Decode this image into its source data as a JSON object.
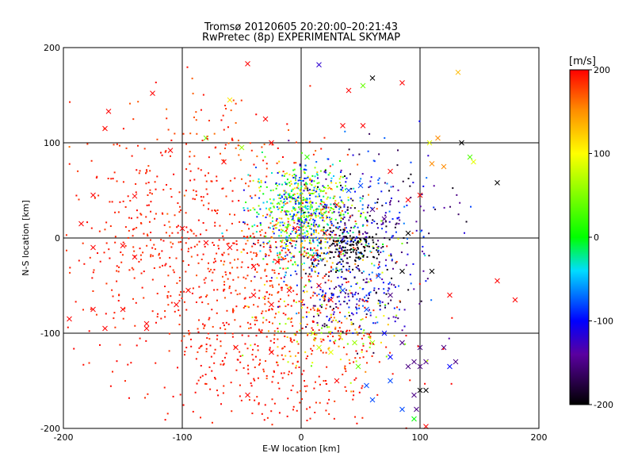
{
  "title_line1": "Tromsø 20120605 20:20:00–20:21:43",
  "title_line2": "RwPretec (8p) EXPERIMENTAL SKYMAP",
  "colorbar": {
    "unit": "[m/s]",
    "min": -200,
    "max": 200,
    "ticks": [
      200,
      100,
      0,
      -100,
      -200
    ]
  },
  "chart_data": {
    "type": "scatter",
    "title": "Tromsø 20120605 20:20:00–20:21:43",
    "subtitle": "RwPretec (8p) EXPERIMENTAL SKYMAP",
    "xlabel": "E-W location [km]",
    "ylabel": "N-S location [km]",
    "xlim": [
      -200,
      200
    ],
    "ylim": [
      -200,
      200
    ],
    "xticks": [
      -200,
      -100,
      0,
      100,
      200
    ],
    "yticks": [
      -200,
      -100,
      0,
      100,
      200
    ],
    "grid": true,
    "color_scale": "velocity [m/s], -200 (black) to 200 (red)",
    "markers": [
      "plus-dot",
      "x"
    ],
    "series": [
      {
        "marker": "x",
        "points": [
          [
            -45,
            183,
            200
          ],
          [
            -125,
            152,
            200
          ],
          [
            -162,
            133,
            200
          ],
          [
            -165,
            115,
            200
          ],
          [
            -60,
            145,
            110
          ],
          [
            -30,
            125,
            200
          ],
          [
            15,
            182,
            -120
          ],
          [
            40,
            155,
            200
          ],
          [
            52,
            160,
            40
          ],
          [
            60,
            168,
            -200
          ],
          [
            85,
            163,
            200
          ],
          [
            132,
            174,
            130
          ],
          [
            35,
            118,
            200
          ],
          [
            52,
            118,
            200
          ],
          [
            -25,
            100,
            200
          ],
          [
            -65,
            80,
            200
          ],
          [
            -110,
            92,
            200
          ],
          [
            -175,
            45,
            200
          ],
          [
            -140,
            44,
            200
          ],
          [
            -50,
            95,
            60
          ],
          [
            -80,
            105,
            40
          ],
          [
            5,
            85,
            20
          ],
          [
            75,
            70,
            200
          ],
          [
            90,
            40,
            200
          ],
          [
            100,
            45,
            200
          ],
          [
            110,
            78,
            150
          ],
          [
            120,
            75,
            150
          ],
          [
            115,
            105,
            150
          ],
          [
            135,
            100,
            -200
          ],
          [
            142,
            85,
            30
          ],
          [
            165,
            58,
            -200
          ],
          [
            108,
            100,
            90
          ],
          [
            145,
            80,
            90
          ],
          [
            -185,
            15,
            200
          ],
          [
            -175,
            -10,
            200
          ],
          [
            -150,
            -8,
            200
          ],
          [
            -140,
            -20,
            200
          ],
          [
            -100,
            10,
            200
          ],
          [
            -80,
            -5,
            200
          ],
          [
            -60,
            -10,
            200
          ],
          [
            -40,
            -30,
            200
          ],
          [
            -20,
            -25,
            200
          ],
          [
            -5,
            10,
            200
          ],
          [
            10,
            -20,
            200
          ],
          [
            20,
            5,
            200
          ],
          [
            30,
            35,
            200
          ],
          [
            40,
            50,
            -80
          ],
          [
            50,
            55,
            -80
          ],
          [
            60,
            30,
            -150
          ],
          [
            70,
            20,
            -150
          ],
          [
            90,
            5,
            -200
          ],
          [
            65,
            -40,
            -80
          ],
          [
            -195,
            -85,
            200
          ],
          [
            -175,
            -75,
            200
          ],
          [
            -165,
            -95,
            200
          ],
          [
            -150,
            -75,
            200
          ],
          [
            -130,
            -90,
            200
          ],
          [
            -105,
            -70,
            200
          ],
          [
            -95,
            -55,
            200
          ],
          [
            -40,
            -60,
            200
          ],
          [
            -25,
            -70,
            200
          ],
          [
            -10,
            -55,
            200
          ],
          [
            15,
            -50,
            200
          ],
          [
            25,
            -65,
            200
          ],
          [
            35,
            -55,
            -80
          ],
          [
            55,
            -75,
            -80
          ],
          [
            75,
            -60,
            -150
          ],
          [
            85,
            -35,
            -200
          ],
          [
            110,
            -35,
            -200
          ],
          [
            125,
            -60,
            200
          ],
          [
            165,
            -45,
            200
          ],
          [
            180,
            -65,
            200
          ],
          [
            10,
            -100,
            80
          ],
          [
            25,
            -120,
            90
          ],
          [
            45,
            -110,
            60
          ],
          [
            60,
            -110,
            60
          ],
          [
            70,
            -100,
            -100
          ],
          [
            85,
            -110,
            -150
          ],
          [
            100,
            -115,
            -150
          ],
          [
            120,
            -115,
            -150
          ],
          [
            130,
            -130,
            -150
          ],
          [
            90,
            -135,
            -150
          ],
          [
            105,
            -130,
            -150
          ],
          [
            75,
            -150,
            -80
          ],
          [
            55,
            -155,
            -80
          ],
          [
            60,
            -170,
            -80
          ],
          [
            95,
            -165,
            -150
          ],
          [
            100,
            -160,
            -200
          ],
          [
            105,
            -160,
            -200
          ],
          [
            125,
            -135,
            -100
          ],
          [
            30,
            -150,
            200
          ],
          [
            -55,
            -115,
            200
          ],
          [
            -25,
            -120,
            200
          ],
          [
            -45,
            -165,
            200
          ],
          [
            -130,
            -95,
            200
          ],
          [
            75,
            -125,
            -100
          ],
          [
            95,
            -130,
            -150
          ],
          [
            100,
            -135,
            -150
          ],
          [
            85,
            -180,
            -80
          ],
          [
            97,
            -180,
            -150
          ],
          [
            95,
            -190,
            0
          ],
          [
            105,
            -198,
            200
          ],
          [
            48,
            -135,
            40
          ],
          [
            15,
            -115,
            80
          ]
        ]
      },
      {
        "marker": "plus-dot",
        "clusters": [
          {
            "cx": -110,
            "cy": -10,
            "sx": 55,
            "sy": 60,
            "n": 450,
            "vmin": 180,
            "vmax": 200
          },
          {
            "cx": -30,
            "cy": -60,
            "sx": 40,
            "sy": 45,
            "n": 300,
            "vmin": 170,
            "vmax": 200
          },
          {
            "cx": -60,
            "cy": 80,
            "sx": 45,
            "sy": 40,
            "n": 120,
            "vmin": 160,
            "vmax": 200
          },
          {
            "cx": 0,
            "cy": 35,
            "sx": 20,
            "sy": 20,
            "n": 550,
            "vmin": -120,
            "vmax": 140
          },
          {
            "cx": 15,
            "cy": -5,
            "sx": 30,
            "sy": 20,
            "n": 350,
            "vmin": -200,
            "vmax": 200
          },
          {
            "cx": 40,
            "cy": -10,
            "sx": 12,
            "sy": 10,
            "n": 120,
            "vmin": -200,
            "vmax": -190
          },
          {
            "cx": 45,
            "cy": -60,
            "sx": 25,
            "sy": 20,
            "n": 220,
            "vmin": -200,
            "vmax": -60
          },
          {
            "cx": 60,
            "cy": 25,
            "sx": 35,
            "sy": 35,
            "n": 220,
            "vmin": -200,
            "vmax": -60
          },
          {
            "cx": 20,
            "cy": -95,
            "sx": 30,
            "sy": 25,
            "n": 140,
            "vmin": 40,
            "vmax": 200
          },
          {
            "cx": -30,
            "cy": -145,
            "sx": 60,
            "sy": 40,
            "n": 250,
            "vmin": 185,
            "vmax": 200
          }
        ]
      }
    ]
  }
}
